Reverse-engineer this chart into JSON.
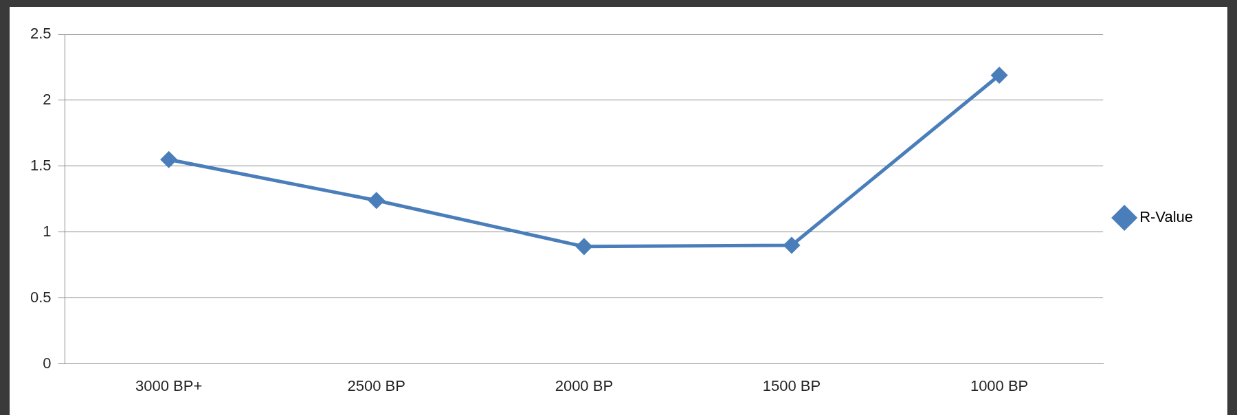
{
  "chart_data": {
    "type": "line",
    "categories": [
      "3000 BP+",
      "2500 BP",
      "2000 BP",
      "1500 BP",
      "1000 BP"
    ],
    "series": [
      {
        "name": "R-Value",
        "color": "#4a7ebb",
        "values": [
          1.55,
          1.24,
          0.89,
          0.9,
          2.19
        ]
      }
    ],
    "ylim": [
      0,
      2.5
    ],
    "yticks": [
      0,
      0.5,
      1,
      1.5,
      2,
      2.5
    ],
    "grid": "y",
    "legend": "right",
    "marker": "diamond",
    "line_style": "solid"
  }
}
